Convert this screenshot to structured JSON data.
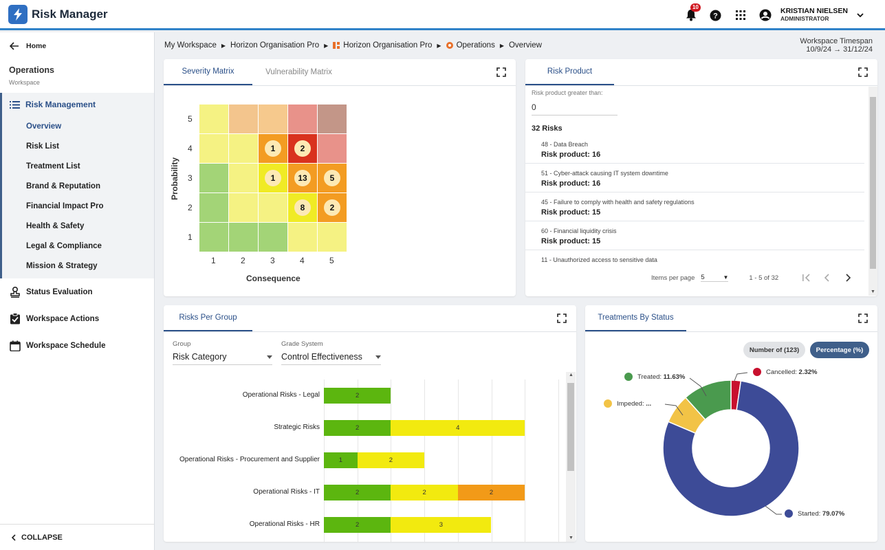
{
  "app": {
    "title": "Risk Manager"
  },
  "header": {
    "notification_count": "10",
    "user_name": "KRISTIAN NIELSEN",
    "user_role": "ADMINISTRATOR"
  },
  "sidebar": {
    "home": "Home",
    "workspace_title": "Operations",
    "workspace_sub": "Workspace",
    "group_label": "Risk Management",
    "group_items": [
      "Overview",
      "Risk List",
      "Treatment List",
      "Brand & Reputation",
      "Financial Impact Pro",
      "Health & Safety",
      "Legal & Compliance",
      "Mission & Strategy"
    ],
    "items": [
      "Status Evaluation",
      "Workspace Actions",
      "Workspace Schedule"
    ],
    "collapse": "COLLAPSE"
  },
  "breadcrumb": [
    "My Workspace",
    "Horizon Organisation Pro",
    "Horizon Organisation Pro",
    "Operations",
    "Overview"
  ],
  "timespan": {
    "label": "Workspace Timespan",
    "value": "10/9/24 → 31/12/24"
  },
  "severity": {
    "tabs": [
      "Severity Matrix",
      "Vulnerability Matrix"
    ],
    "y_label": "Probability",
    "x_label": "Consequence",
    "y_ticks": [
      "5",
      "4",
      "3",
      "2",
      "1"
    ],
    "x_ticks": [
      "1",
      "2",
      "3",
      "4",
      "5"
    ],
    "colors": [
      [
        "#f5f283",
        "#f3c58d",
        "#f6c98d",
        "#e8928a",
        "#c39688"
      ],
      [
        "#f5f283",
        "#f5f283",
        "#f39c22",
        "#d9321e",
        "#e8928a"
      ],
      [
        "#a3d477",
        "#f5f283",
        "#f0eb25",
        "#f39c22",
        "#f39c22"
      ],
      [
        "#a3d477",
        "#f5f283",
        "#f5f283",
        "#f0eb25",
        "#f39c22"
      ],
      [
        "#a3d477",
        "#a3d477",
        "#a3d477",
        "#f5f283",
        "#f5f283"
      ]
    ],
    "counts": [
      [
        "",
        "",
        "",
        "",
        ""
      ],
      [
        "",
        "",
        "1",
        "2",
        ""
      ],
      [
        "",
        "",
        "1",
        "13",
        "5"
      ],
      [
        "",
        "",
        "",
        "8",
        "2"
      ],
      [
        "",
        "",
        "",
        "",
        ""
      ]
    ]
  },
  "risk_product": {
    "tab": "Risk Product",
    "filter_label": "Risk product greater than:",
    "filter_value": "0",
    "count": "32 Risks",
    "items": [
      {
        "name": "48 - Data Breach",
        "value": "Risk product: 16"
      },
      {
        "name": "51 - Cyber-attack causing IT system downtime",
        "value": "Risk product: 16"
      },
      {
        "name": "45 - Failure to comply with health and safety regulations",
        "value": "Risk product: 15"
      },
      {
        "name": "60 - Financial liquidity crisis",
        "value": "Risk product: 15"
      },
      {
        "name": "11 - Unauthorized access to sensitive data",
        "value": ""
      }
    ],
    "items_per_page_label": "Items per page",
    "items_per_page": "5",
    "range": "1 - 5 of 32"
  },
  "risks_per_group": {
    "tab": "Risks Per Group",
    "group_label": "Group",
    "group_value": "Risk Category",
    "grade_label": "Grade System",
    "grade_value": "Control Effectiveness",
    "colors": [
      "#5cb60f",
      "#f2ea0f",
      "#f29a18"
    ]
  },
  "chart_data": [
    {
      "type": "bar",
      "orientation": "horizontal",
      "stacked": true,
      "categories": [
        "Operational Risks - Legal",
        "Strategic Risks",
        "Operational Risks - Procurement and Supplier",
        "Operational Risks - IT",
        "Operational Risks - HR"
      ],
      "series": [
        {
          "color": "#5cb60f",
          "values": [
            2,
            2,
            1,
            2,
            2
          ]
        },
        {
          "color": "#f2ea0f",
          "values": [
            0,
            4,
            2,
            2,
            3
          ]
        },
        {
          "color": "#f29a18",
          "values": [
            0,
            0,
            0,
            2,
            0
          ]
        }
      ]
    },
    {
      "type": "pie",
      "donut": true,
      "labels": [
        "Started",
        "Impeded",
        "Treated",
        "Cancelled"
      ],
      "values": [
        79.07,
        6.98,
        11.63,
        2.32
      ],
      "display_labels": [
        "79.07%",
        "...",
        "11.63%",
        "2.32%"
      ],
      "colors": [
        "#3d4b97",
        "#f2c346",
        "#4a9a4e",
        "#c8102e"
      ]
    }
  ],
  "treatments": {
    "tab": "Treatments By Status",
    "toggle_count": "Number of (123)",
    "toggle_percent": "Percentage (%)",
    "legend": [
      {
        "label": "Treated:",
        "value": "11.63%"
      },
      {
        "label": "Cancelled:",
        "value": "2.32%"
      },
      {
        "label": "Impeded:",
        "value": "..."
      },
      {
        "label": "Started:",
        "value": "79.07%"
      }
    ]
  }
}
